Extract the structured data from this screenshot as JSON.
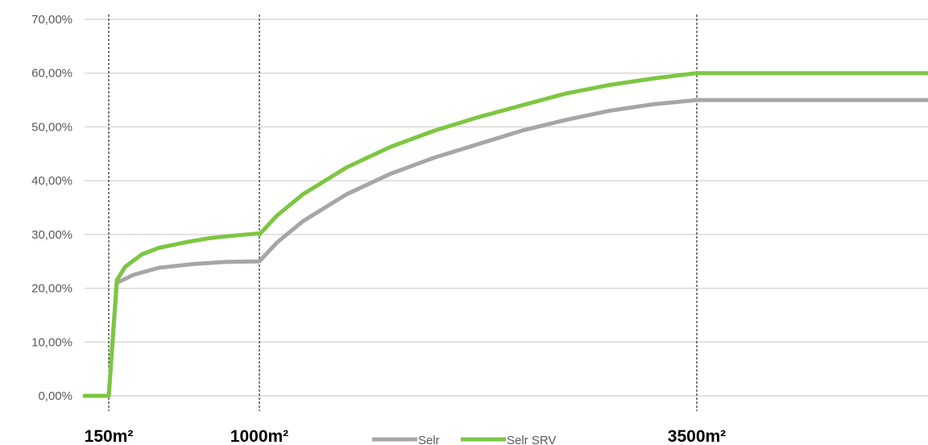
{
  "chart_data": {
    "type": "line",
    "title": "",
    "xlabel": "",
    "ylabel": "",
    "x_tick_labels": [
      "150m²",
      "1000m²",
      "3500m²"
    ],
    "y_tick_labels": [
      "0,00%",
      "10,00%",
      "20,00%",
      "30,00%",
      "40,00%",
      "50,00%",
      "60,00%",
      "70,00%"
    ],
    "ylim": [
      0,
      70
    ],
    "xlim": [
      0,
      4800
    ],
    "grid": "horizontal",
    "legend_position": "bottom-center",
    "markers": [
      150,
      1000,
      3500
    ],
    "series": [
      {
        "name": "Selr",
        "color": "#A6A6A6",
        "points": [
          [
            0,
            0
          ],
          [
            140,
            0
          ],
          [
            150,
            21
          ],
          [
            250,
            22.5
          ],
          [
            400,
            23.8
          ],
          [
            600,
            24.5
          ],
          [
            800,
            24.9
          ],
          [
            999,
            25
          ],
          [
            1000,
            25
          ],
          [
            1100,
            28.5
          ],
          [
            1250,
            32.5
          ],
          [
            1500,
            37.5
          ],
          [
            1750,
            41.3
          ],
          [
            2000,
            44.3
          ],
          [
            2250,
            46.8
          ],
          [
            2500,
            49.3
          ],
          [
            2750,
            51.3
          ],
          [
            3000,
            53
          ],
          [
            3250,
            54.2
          ],
          [
            3500,
            55
          ],
          [
            4800,
            55
          ]
        ]
      },
      {
        "name": "Selr SRV",
        "color": "#7DC642",
        "points": [
          [
            0,
            0
          ],
          [
            140,
            0
          ],
          [
            150,
            21.5
          ],
          [
            200,
            24
          ],
          [
            300,
            26.3
          ],
          [
            400,
            27.5
          ],
          [
            550,
            28.5
          ],
          [
            700,
            29.3
          ],
          [
            850,
            29.8
          ],
          [
            999,
            30.2
          ],
          [
            1000,
            30
          ],
          [
            1100,
            33.5
          ],
          [
            1250,
            37.5
          ],
          [
            1500,
            42.5
          ],
          [
            1750,
            46.3
          ],
          [
            2000,
            49.3
          ],
          [
            2250,
            51.8
          ],
          [
            2500,
            54
          ],
          [
            2750,
            56.2
          ],
          [
            3000,
            57.8
          ],
          [
            3250,
            59
          ],
          [
            3500,
            60
          ],
          [
            4800,
            60
          ]
        ]
      }
    ]
  }
}
